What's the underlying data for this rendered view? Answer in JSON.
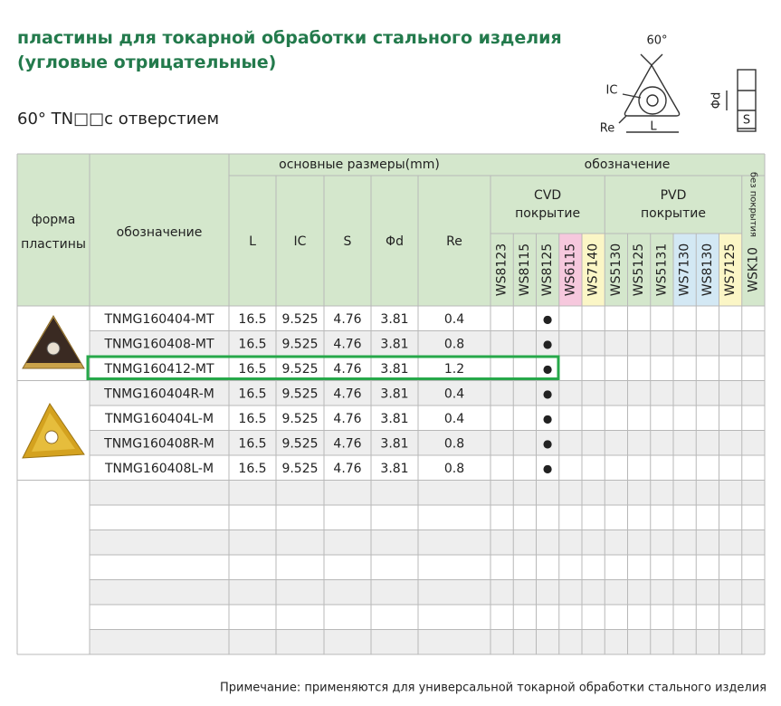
{
  "header": {
    "title_line1": "пластины для токарной обработки стального изделия",
    "title_line2": "(угловые отрицательные)",
    "subtitle": "60°  TN□□с отверстием"
  },
  "diagram": {
    "angle": "60°",
    "ic": "IC",
    "re": "Re",
    "l": "L",
    "phid": "Φd",
    "s": "S"
  },
  "table": {
    "header": {
      "form": [
        "форма",
        "пластины"
      ],
      "designation": "обозначение",
      "dims_group": "основные размеры(mm)",
      "grade_group": "обозначение",
      "dims": [
        "L",
        "IC",
        "S",
        "Φd",
        "Re"
      ],
      "cvd": [
        "CVD",
        "покрытие"
      ],
      "pvd": [
        "PVD",
        "покрытие"
      ],
      "uncoated": "без покрытия",
      "grades": [
        "WS8123",
        "WS8115",
        "WS8125",
        "WS6115",
        "WS7140",
        "WS5130",
        "WS5125",
        "WS5131",
        "WS7130",
        "WS8130",
        "WS7125",
        "WSK10"
      ]
    },
    "rows": [
      {
        "designation": "TNMG160404-MT",
        "dims": [
          "16.5",
          "9.525",
          "4.76",
          "3.81",
          "0.4"
        ],
        "marks": {
          "WS8125": "●"
        }
      },
      {
        "designation": "TNMG160408-MT",
        "dims": [
          "16.5",
          "9.525",
          "4.76",
          "3.81",
          "0.8"
        ],
        "marks": {
          "WS8125": "●"
        }
      },
      {
        "designation": "TNMG160412-MT",
        "dims": [
          "16.5",
          "9.525",
          "4.76",
          "3.81",
          "1.2"
        ],
        "marks": {
          "WS8125": "●"
        }
      },
      {
        "designation": "TNMG160404R-M",
        "dims": [
          "16.5",
          "9.525",
          "4.76",
          "3.81",
          "0.4"
        ],
        "marks": {
          "WS8125": "●"
        }
      },
      {
        "designation": "TNMG160404L-M",
        "dims": [
          "16.5",
          "9.525",
          "4.76",
          "3.81",
          "0.4"
        ],
        "marks": {
          "WS8125": "●"
        }
      },
      {
        "designation": "TNMG160408R-M",
        "dims": [
          "16.5",
          "9.525",
          "4.76",
          "3.81",
          "0.8"
        ],
        "marks": {
          "WS8125": "●"
        }
      },
      {
        "designation": "TNMG160408L-M",
        "dims": [
          "16.5",
          "9.525",
          "4.76",
          "3.81",
          "0.8"
        ],
        "marks": {
          "WS8125": "●"
        }
      }
    ]
  },
  "footer": {
    "note": "Примечание: применяются для универсальной токарной обработки стального изделия"
  }
}
